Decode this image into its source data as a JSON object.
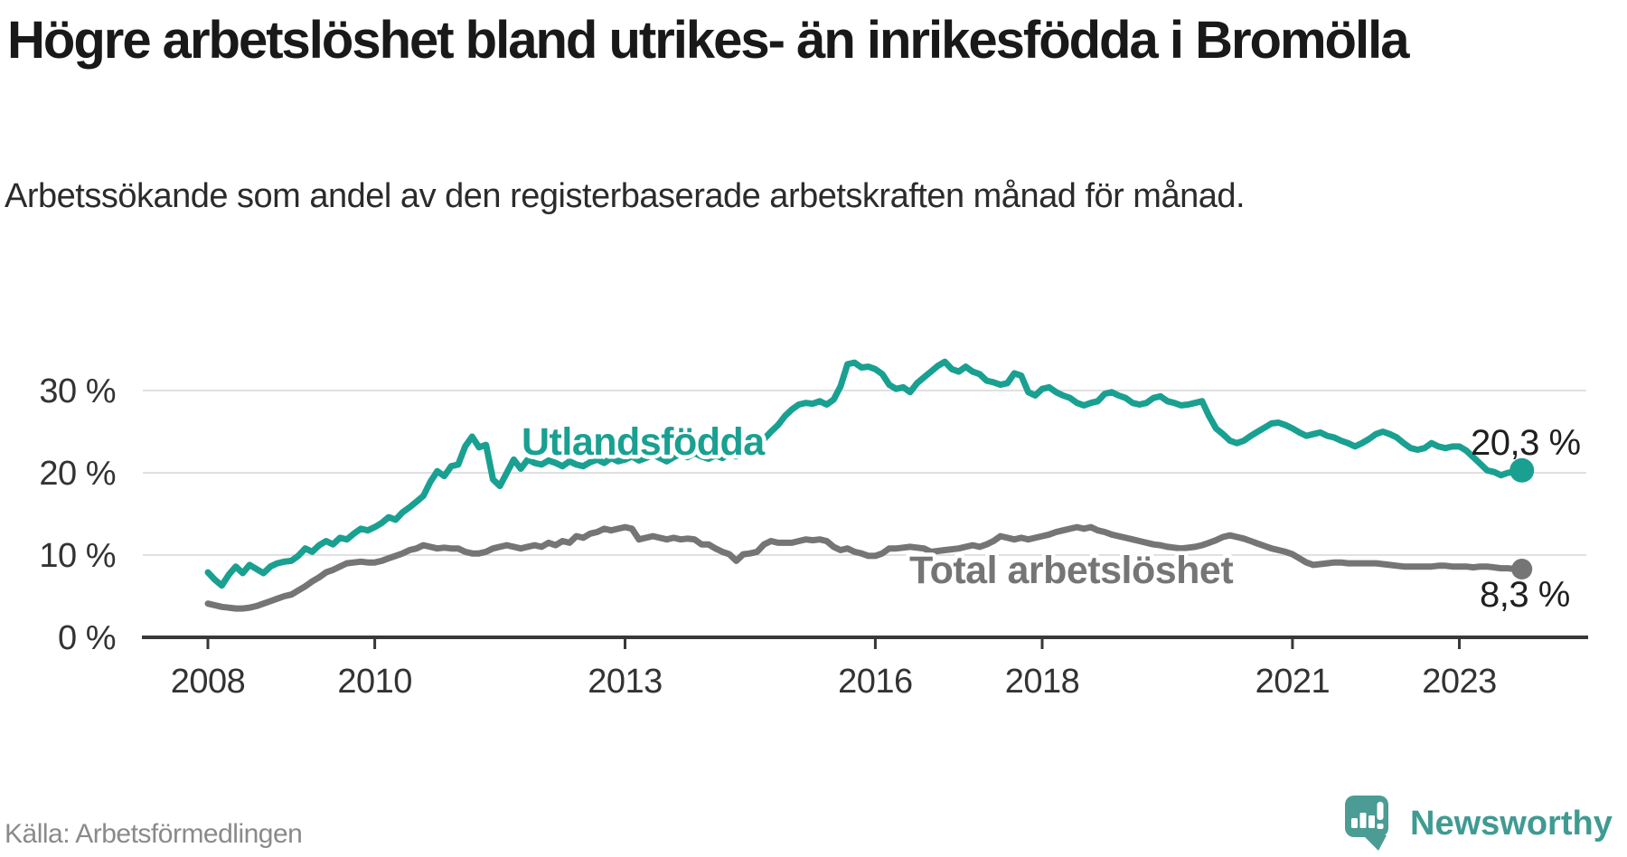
{
  "header": {
    "title": "Högre arbetslöshet bland utrikes- än inrikesfödda i Bromölla",
    "subtitle": "Arbetssökande som andel av den registerbaserade arbetskraften månad för månad."
  },
  "chart_data": {
    "type": "line",
    "unit": "percent",
    "x_start": "2008-01",
    "x_end": "2023-10",
    "x_frequency": "monthly",
    "ylim": [
      0,
      35
    ],
    "grid": "horizontal",
    "legend_position": "inline-labels",
    "yticks": [
      {
        "label": "0 %",
        "value": 0
      },
      {
        "label": "10 %",
        "value": 10
      },
      {
        "label": "20 %",
        "value": 20
      },
      {
        "label": "30 %",
        "value": 30
      }
    ],
    "xticks": [
      {
        "label": "2008",
        "year": 2008
      },
      {
        "label": "2010",
        "year": 2010
      },
      {
        "label": "2013",
        "year": 2013
      },
      {
        "label": "2016",
        "year": 2016
      },
      {
        "label": "2018",
        "year": 2018
      },
      {
        "label": "2021",
        "year": 2021
      },
      {
        "label": "2023",
        "year": 2023
      }
    ],
    "series": [
      {
        "name": "Utlandsfödda",
        "color": "#19a091",
        "end_label": "20,3 %",
        "end_value": 20.3,
        "values": [
          7.9,
          7,
          6.3,
          7.6,
          8.6,
          7.8,
          8.8,
          8.3,
          7.8,
          8.6,
          9,
          9.2,
          9.3,
          9.9,
          10.8,
          10.4,
          11.2,
          11.7,
          11.3,
          12.1,
          11.9,
          12.6,
          13.2,
          13,
          13.4,
          13.9,
          14.6,
          14.3,
          15.2,
          15.8,
          16.5,
          17.2,
          18.9,
          20.2,
          19.6,
          20.8,
          21,
          23.2,
          24.4,
          23.1,
          23.4,
          19.2,
          18.4,
          20,
          21.6,
          20.5,
          21.6,
          21.2,
          21,
          21.5,
          21.2,
          20.8,
          21.4,
          21,
          20.8,
          21.3,
          21.6,
          21.2,
          21.8,
          21.4,
          21.6,
          22,
          21.5,
          21.8,
          22.2,
          21.8,
          21.4,
          21.9,
          22.3,
          21.9,
          22.4,
          22,
          21.7,
          22.1,
          21.8,
          22.3,
          22,
          22.4,
          22.8,
          23.3,
          24.1,
          25,
          25.8,
          26.9,
          27.7,
          28.3,
          28.5,
          28.4,
          28.7,
          28.3,
          28.9,
          30.5,
          33.2,
          33.4,
          32.8,
          32.9,
          32.6,
          32,
          30.7,
          30.2,
          30.4,
          29.8,
          30.9,
          31.6,
          32.3,
          33,
          33.5,
          32.6,
          32.3,
          32.9,
          32.3,
          32,
          31.2,
          31,
          30.7,
          30.9,
          32.1,
          31.8,
          29.8,
          29.4,
          30.2,
          30.4,
          29.8,
          29.4,
          29.1,
          28.5,
          28.2,
          28.5,
          28.7,
          29.6,
          29.8,
          29.4,
          29.1,
          28.5,
          28.3,
          28.5,
          29.1,
          29.3,
          28.7,
          28.5,
          28.2,
          28.3,
          28.5,
          28.7,
          26.9,
          25.4,
          24.7,
          23.9,
          23.6,
          23.9,
          24.5,
          25,
          25.5,
          26,
          26.1,
          25.8,
          25.4,
          24.9,
          24.5,
          24.7,
          24.9,
          24.5,
          24.3,
          23.9,
          23.6,
          23.2,
          23.6,
          24.1,
          24.7,
          25,
          24.7,
          24.3,
          23.6,
          23,
          22.8,
          23,
          23.6,
          23.2,
          23,
          23.2,
          23.2,
          22.7,
          21.9,
          21.1,
          20.3,
          20.1,
          19.7,
          20,
          20.1,
          20.3
        ]
      },
      {
        "name": "Total arbetslöshet",
        "color": "#757575",
        "end_label": "8,3 %",
        "end_value": 8.3,
        "values": [
          4.1,
          3.9,
          3.7,
          3.6,
          3.5,
          3.5,
          3.6,
          3.8,
          4.1,
          4.4,
          4.7,
          5,
          5.2,
          5.7,
          6.2,
          6.8,
          7.3,
          7.9,
          8.2,
          8.6,
          9,
          9.1,
          9.2,
          9.1,
          9.1,
          9.3,
          9.6,
          9.9,
          10.2,
          10.6,
          10.8,
          11.2,
          11,
          10.8,
          10.9,
          10.8,
          10.8,
          10.4,
          10.2,
          10.2,
          10.4,
          10.8,
          11,
          11.2,
          11,
          10.8,
          11,
          11.2,
          11,
          11.5,
          11.2,
          11.7,
          11.5,
          12.3,
          12.1,
          12.6,
          12.8,
          13.2,
          13,
          13.2,
          13.4,
          13.2,
          11.9,
          12.1,
          12.3,
          12.1,
          11.9,
          12.1,
          11.9,
          12,
          11.9,
          11.3,
          11.3,
          10.8,
          10.4,
          10.1,
          9.3,
          10.1,
          10.2,
          10.4,
          11.3,
          11.7,
          11.5,
          11.5,
          11.5,
          11.7,
          11.9,
          11.8,
          11.9,
          11.7,
          11,
          10.6,
          10.8,
          10.4,
          10.2,
          9.9,
          9.9,
          10.2,
          10.8,
          10.8,
          10.9,
          11,
          10.9,
          10.8,
          10.4,
          10.5,
          10.6,
          10.7,
          10.8,
          11,
          11.2,
          11,
          11.3,
          11.7,
          12.3,
          12.1,
          11.9,
          12.1,
          11.9,
          12.1,
          12.3,
          12.5,
          12.8,
          13,
          13.2,
          13.4,
          13.2,
          13.4,
          13,
          12.8,
          12.5,
          12.3,
          12.1,
          11.9,
          11.7,
          11.5,
          11.3,
          11.2,
          11,
          10.9,
          10.8,
          10.9,
          11,
          11.2,
          11.5,
          11.8,
          12.2,
          12.4,
          12.2,
          12,
          11.7,
          11.4,
          11.1,
          10.8,
          10.6,
          10.4,
          10.1,
          9.6,
          9.1,
          8.8,
          8.9,
          9,
          9.1,
          9.1,
          9,
          9,
          9,
          9,
          9,
          8.9,
          8.8,
          8.7,
          8.6,
          8.6,
          8.6,
          8.6,
          8.6,
          8.7,
          8.7,
          8.6,
          8.6,
          8.6,
          8.5,
          8.6,
          8.6,
          8.5,
          8.4,
          8.4,
          8.3,
          8.3
        ]
      }
    ]
  },
  "footer": {
    "source": "Källa: Arbetsförmedlingen",
    "brand": "Newsworthy"
  },
  "colors": {
    "accent_teal": "#19a091",
    "line_gray": "#757575",
    "logo_teal": "#4a9c94",
    "brand_text_teal": "#3f9b92",
    "title_text": "#191919",
    "axis_text": "#333333",
    "source_text": "#8a8a8a"
  }
}
